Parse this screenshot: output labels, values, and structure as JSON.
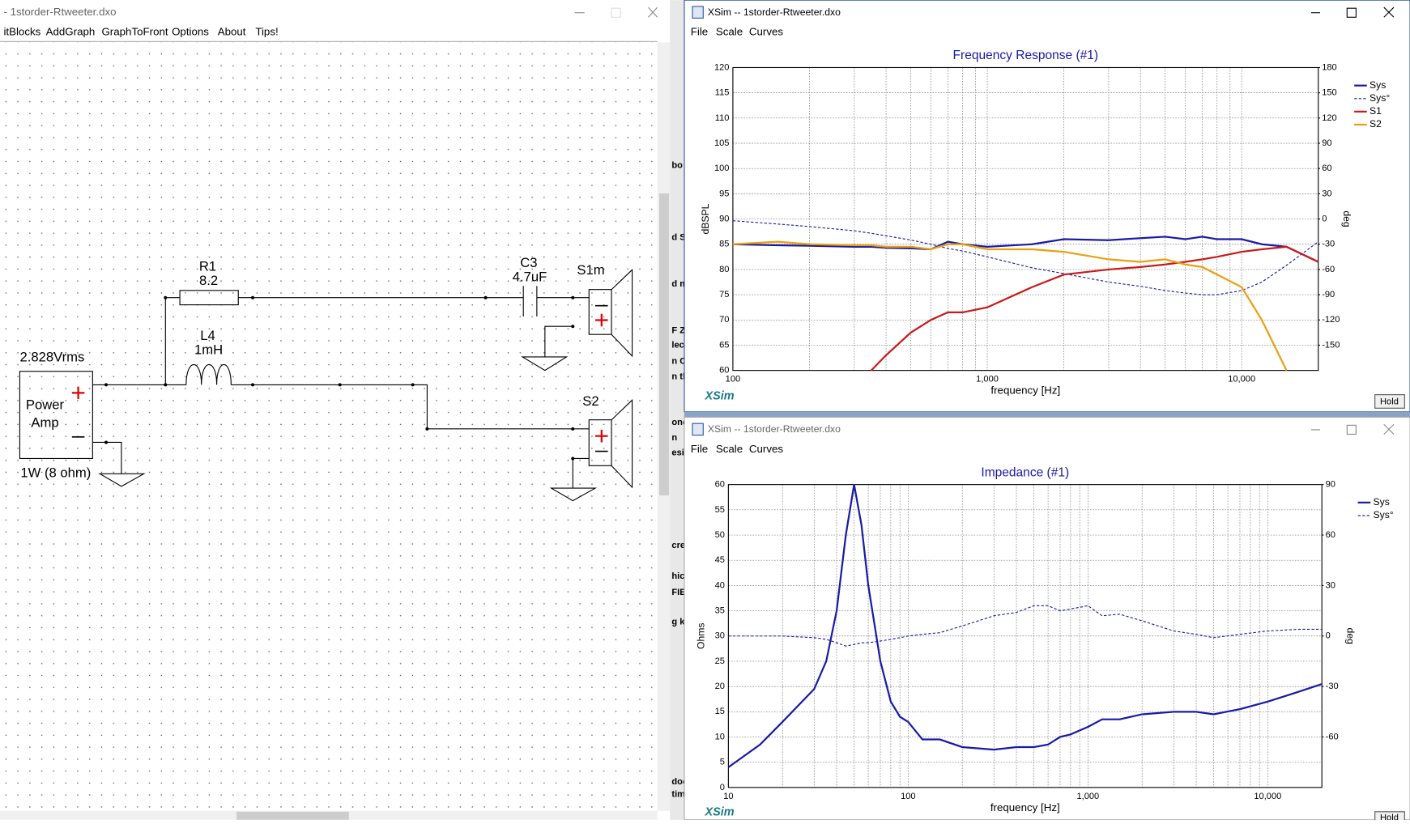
{
  "editor": {
    "title": "- 1storder-Rtweeter.dxo",
    "menu": [
      "itBlocks",
      "AddGraph",
      "GraphToFront",
      "Options",
      "About",
      "Tips!"
    ],
    "labels": {
      "r1": "R1",
      "r1_value": "8.2",
      "l4": "L4",
      "l4_value": "1mH",
      "c3": "C3",
      "c3_value": "4.7uF",
      "s1": "S1m",
      "s2": "S2",
      "source": "2.828Vrms",
      "amp_line1": "Power",
      "amp_line2": "Amp",
      "amp_rating": "1W (8 ohm)"
    }
  },
  "background_fragments": [
    "bo",
    "d Sp",
    "d me",
    "F Z",
    "lec",
    "n C",
    "n th",
    "one",
    "n",
    "esi",
    "cre",
    "hic",
    "FIE",
    "g k",
    "doc",
    "tim"
  ],
  "windows": [
    {
      "title": "XSim -- 1storder-Rtweeter.dxo",
      "menu": [
        "File",
        "Scale",
        "Curves"
      ],
      "footer": "XSim",
      "button": "Hold"
    },
    {
      "title": "XSim -- 1storder-Rtweeter.dxo",
      "menu": [
        "File",
        "Scale",
        "Curves"
      ],
      "footer": "XSim",
      "button": "Hold"
    }
  ],
  "chart_data": [
    {
      "type": "line",
      "title": "Frequency Response (#1)",
      "x_label": "frequency [Hz]",
      "y_label": "dBSPL",
      "y2_label": "deg",
      "log_x": true,
      "grid": true,
      "legend": "right",
      "xlim": [
        100,
        20000
      ],
      "xticks": [
        100,
        {
          "value": 1000,
          "label": "1,000"
        },
        {
          "value": 10000,
          "label": "10,000"
        }
      ],
      "ylim": [
        60,
        120
      ],
      "yticks": [
        60,
        65,
        70,
        75,
        80,
        85,
        90,
        95,
        100,
        105,
        110,
        115,
        120
      ],
      "y2lim": [
        -180,
        180
      ],
      "y2ticks": [
        -150,
        -120,
        -90,
        -60,
        -30,
        0,
        30,
        60,
        90,
        120,
        150,
        180
      ],
      "x": [
        100,
        150,
        200,
        300,
        350,
        400,
        500,
        600,
        700,
        800,
        1000,
        1500,
        2000,
        3000,
        4000,
        5000,
        6000,
        7000,
        8000,
        10000,
        12000,
        15000,
        20000
      ],
      "series": [
        {
          "name": "Sys",
          "color": "#1a1aa6",
          "width": 2,
          "values": [
            85,
            84.8,
            84.7,
            84.5,
            84.5,
            84.3,
            84.2,
            84,
            85.5,
            85,
            84.5,
            85,
            86,
            85.8,
            86.2,
            86.5,
            86,
            86.5,
            86,
            86,
            85,
            84.5,
            81.5
          ]
        },
        {
          "name": "Sys°",
          "color": "#1a1aa6",
          "width": 1,
          "dashed": true,
          "axis": "y2",
          "values": [
            -2,
            -6,
            -9,
            -14,
            -17,
            -20,
            -25,
            -30,
            -35,
            -38,
            -45,
            -58,
            -65,
            -75,
            -80,
            -85,
            -88,
            -90,
            -90,
            -85,
            -75,
            -55,
            -27
          ]
        },
        {
          "name": "S1",
          "color": "#c81a1a",
          "width": 2,
          "values": [
            null,
            null,
            null,
            null,
            60,
            63,
            67.5,
            70,
            71.5,
            71.5,
            72.5,
            76.5,
            79,
            80,
            80.5,
            81,
            81.5,
            82,
            82.5,
            83.5,
            84,
            84.5,
            81.5
          ]
        },
        {
          "name": "S2",
          "color": "#e8a010",
          "width": 2,
          "values": [
            85,
            85.5,
            85,
            84.8,
            84.8,
            84.5,
            84.5,
            84,
            85,
            85,
            84,
            84,
            83.5,
            82,
            81.5,
            82,
            81,
            80.5,
            79,
            76.5,
            70,
            60,
            null
          ]
        }
      ]
    },
    {
      "type": "line",
      "title": "Impedance (#1)",
      "x_label": "frequency [Hz]",
      "y_label": "Ohms",
      "y2_label": "deg",
      "log_x": true,
      "grid": true,
      "legend": "right",
      "xlim": [
        10,
        20000
      ],
      "xticks": [
        10,
        100,
        {
          "value": 1000,
          "label": "1,000"
        },
        {
          "value": 10000,
          "label": "10,000"
        }
      ],
      "ylim": [
        0,
        60
      ],
      "yticks": [
        0,
        5,
        10,
        15,
        20,
        25,
        30,
        35,
        40,
        45,
        50,
        55,
        60
      ],
      "y2lim": [
        -90,
        90
      ],
      "y2ticks": [
        -60,
        -30,
        0,
        30,
        60,
        90
      ],
      "x": [
        10,
        15,
        20,
        30,
        35,
        40,
        45,
        50,
        55,
        60,
        70,
        80,
        90,
        100,
        120,
        150,
        200,
        300,
        400,
        500,
        600,
        700,
        800,
        1000,
        1200,
        1500,
        2000,
        3000,
        4000,
        5000,
        7000,
        10000,
        15000,
        20000
      ],
      "series": [
        {
          "name": "Sys",
          "color": "#1a1aa6",
          "width": 2,
          "values": [
            4,
            8.5,
            13,
            19.5,
            25,
            35,
            50,
            60,
            52,
            40,
            25,
            17,
            14,
            13,
            9.5,
            9.5,
            8,
            7.5,
            8,
            8,
            8.5,
            10,
            10.5,
            12,
            13.5,
            13.5,
            14.5,
            15,
            15,
            14.5,
            15.5,
            17,
            19,
            20.5
          ]
        },
        {
          "name": "Sys°",
          "color": "#1a1aa6",
          "width": 1,
          "dashed": true,
          "axis": "y2",
          "values": [
            0,
            0,
            0,
            -1,
            -2,
            -4,
            -6,
            -5,
            -4,
            -4,
            -3,
            -2,
            -1,
            0,
            1,
            2,
            6,
            12,
            14,
            18,
            18,
            15,
            16,
            18,
            12,
            13,
            9,
            3,
            1,
            -1,
            1,
            3,
            4,
            4
          ]
        }
      ]
    }
  ]
}
